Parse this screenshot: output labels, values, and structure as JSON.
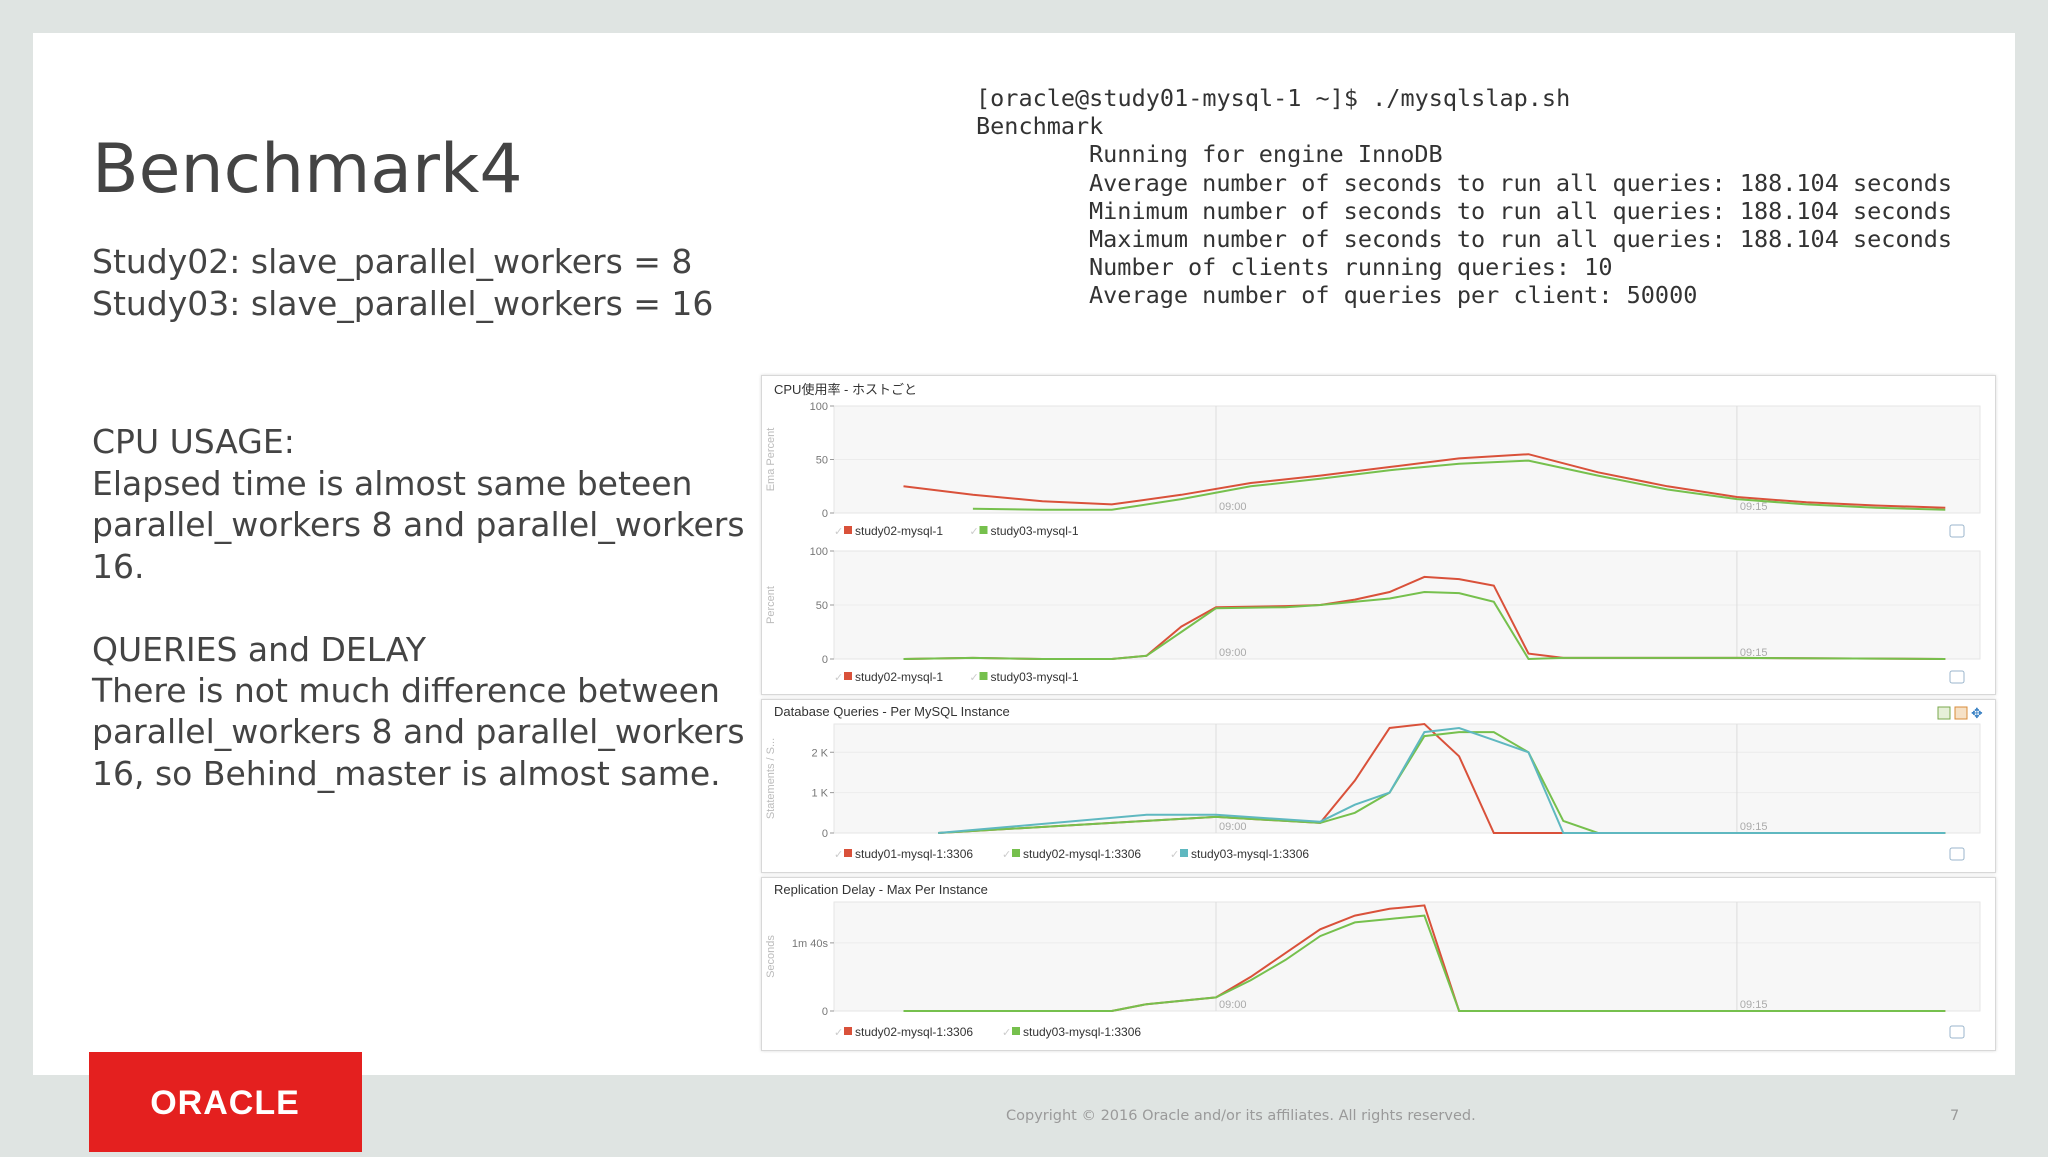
{
  "slide": {
    "title": "Benchmark4",
    "config_lines": [
      "Study02:  slave_parallel_workers = 8",
      "Study03:  slave_parallel_workers = 16"
    ],
    "cpu_heading": "CPU USAGE:",
    "cpu_lines": [
      "Elapsed time is almost same beteen",
      "parallel_workers  8 and parallel_workers",
      "16."
    ],
    "queries_heading": "QUERIES and DELAY",
    "queries_lines": [
      "There is not much difference between",
      "parallel_workers  8 and parallel_workers",
      "16, so Behind_master is almost same."
    ],
    "terminal": {
      "prompt": "[oracle@study01-mysql-1 ~]$ ./mysqlslap.sh",
      "header": "Benchmark",
      "lines": [
        "Running for engine InnoDB",
        "Average number of seconds to run all queries: 188.104 seconds",
        "Minimum number of seconds to run all queries: 188.104 seconds",
        "Maximum number of seconds to run all queries: 188.104 seconds",
        "Number of clients running queries: 10",
        "Average number of queries per client: 50000"
      ]
    },
    "footer": {
      "copyright": "Copyright © 2016 Oracle and/or its affiliates. All rights reserved.",
      "page": "7",
      "logo_text": "ORACLE"
    },
    "colors": {
      "red": "#d9513a",
      "green": "#76c04d",
      "teal": "#5fb8c0",
      "oracle_red": "#e4201f"
    }
  },
  "chart_data": [
    {
      "type": "line",
      "title": "CPU使用率 - ホストごと",
      "ylabel": "Ema Percent",
      "x": [
        "08:51",
        "08:53",
        "08:55",
        "08:57",
        "08:59",
        "09:01",
        "09:03",
        "09:05",
        "09:07",
        "09:09",
        "09:11",
        "09:13",
        "09:15",
        "09:17",
        "09:19",
        "09:21"
      ],
      "xticks": [
        "09:00",
        "09:15"
      ],
      "yticks": [
        "100",
        "50",
        "0"
      ],
      "ylim": [
        0,
        100
      ],
      "series": [
        {
          "name": "study02-mysql-1",
          "color": "#d9513a",
          "values": [
            25,
            17,
            11,
            8,
            17,
            28,
            35,
            43,
            51,
            55,
            38,
            25,
            15,
            10,
            7,
            5
          ]
        },
        {
          "name": "study03-mysql-1",
          "color": "#76c04d",
          "values": [
            null,
            4,
            3,
            3,
            13,
            25,
            32,
            40,
            46,
            49,
            35,
            22,
            13,
            8,
            5,
            3
          ]
        }
      ]
    },
    {
      "type": "line",
      "title": "",
      "ylabel": "Percent",
      "x": [
        "08:51",
        "08:53",
        "08:55",
        "08:57",
        "08:58",
        "08:59",
        "09:00",
        "09:02",
        "09:03",
        "09:04",
        "09:05",
        "09:06",
        "09:07",
        "09:08",
        "09:09",
        "09:10",
        "09:11",
        "09:12",
        "09:15",
        "09:21"
      ],
      "xticks": [
        "09:00",
        "09:15"
      ],
      "yticks": [
        "100",
        "50",
        "0"
      ],
      "ylim": [
        0,
        100
      ],
      "series": [
        {
          "name": "study02-mysql-1",
          "color": "#d9513a",
          "values": [
            0,
            1,
            0,
            0,
            3,
            30,
            48,
            49,
            50,
            55,
            62,
            76,
            74,
            68,
            5,
            1,
            1,
            1,
            1,
            0
          ]
        },
        {
          "name": "study03-mysql-1",
          "color": "#76c04d",
          "values": [
            0,
            1,
            0,
            0,
            3,
            25,
            47,
            48,
            50,
            53,
            56,
            62,
            61,
            53,
            0,
            1,
            1,
            1,
            1,
            0
          ]
        }
      ]
    },
    {
      "type": "line",
      "title": "Database Queries - Per MySQL Instance",
      "ylabel": "Statements / S...",
      "x": [
        "08:52",
        "08:58",
        "09:00",
        "09:03",
        "09:04",
        "09:05",
        "09:06",
        "09:07",
        "09:08",
        "09:09",
        "09:10",
        "09:11",
        "09:12",
        "09:21"
      ],
      "xticks": [
        "09:00",
        "09:15"
      ],
      "yticks": [
        "2 K",
        "1 K",
        "0"
      ],
      "ylim": [
        0,
        2700
      ],
      "series": [
        {
          "name": "study01-mysql-1:3306",
          "color": "#d9513a",
          "values": [
            0,
            300,
            400,
            250,
            1300,
            2600,
            2700,
            1900,
            0,
            0,
            0,
            0,
            0,
            0
          ]
        },
        {
          "name": "study02-mysql-1:3306",
          "color": "#76c04d",
          "values": [
            0,
            300,
            400,
            250,
            500,
            1000,
            2400,
            2500,
            2500,
            2000,
            300,
            0,
            0,
            0
          ]
        },
        {
          "name": "study03-mysql-1:3306",
          "color": "#5fb8c0",
          "values": [
            0,
            450,
            450,
            280,
            700,
            1000,
            2500,
            2600,
            2300,
            2000,
            0,
            0,
            0,
            0
          ]
        }
      ]
    },
    {
      "type": "line",
      "title": "Replication Delay - Max Per Instance",
      "ylabel": "Seconds",
      "x": [
        "08:51",
        "08:57",
        "08:58",
        "09:00",
        "09:01",
        "09:02",
        "09:03",
        "09:04",
        "09:05",
        "09:06",
        "09:07",
        "09:21"
      ],
      "xticks": [
        "09:00",
        "09:15"
      ],
      "yticks": [
        "1m 40s",
        "0"
      ],
      "ylim": [
        0,
        160
      ],
      "series": [
        {
          "name": "study02-mysql-1:3306",
          "color": "#d9513a",
          "values": [
            0,
            0,
            10,
            20,
            50,
            85,
            120,
            140,
            150,
            155,
            0,
            0
          ]
        },
        {
          "name": "study03-mysql-1:3306",
          "color": "#76c04d",
          "values": [
            0,
            0,
            10,
            20,
            45,
            75,
            110,
            130,
            135,
            140,
            0,
            0
          ]
        }
      ]
    }
  ]
}
